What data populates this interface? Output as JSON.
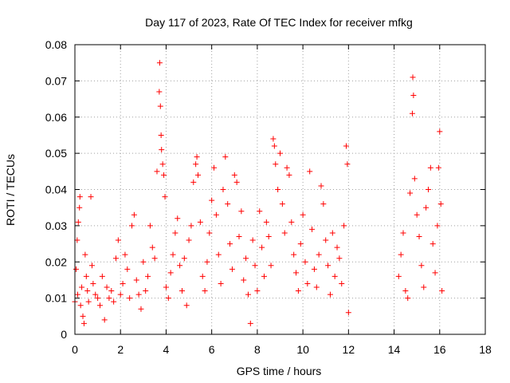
{
  "chart_data": {
    "type": "scatter",
    "title": "Day 117 of 2023, Rate Of TEC Index for receiver mfkg",
    "xlabel": "GPS time / hours",
    "ylabel": "ROTI / TECUs",
    "xlim": [
      0,
      18
    ],
    "ylim": [
      0,
      0.08
    ],
    "x_ticks": [
      "0",
      "2",
      "4",
      "6",
      "8",
      "10",
      "12",
      "14",
      "16",
      "18"
    ],
    "y_ticks": [
      "0",
      "0.01",
      "0.02",
      "0.03",
      "0.04",
      "0.05",
      "0.06",
      "0.07",
      "0.08"
    ],
    "grid": true,
    "marker": "plus",
    "marker_color": "#ff0000",
    "series": [
      {
        "name": "ROTI",
        "points": [
          [
            0.0,
            0.009
          ],
          [
            0.05,
            0.018
          ],
          [
            0.1,
            0.026
          ],
          [
            0.12,
            0.011
          ],
          [
            0.15,
            0.031
          ],
          [
            0.2,
            0.035
          ],
          [
            0.22,
            0.038
          ],
          [
            0.25,
            0.008
          ],
          [
            0.3,
            0.013
          ],
          [
            0.35,
            0.005
          ],
          [
            0.4,
            0.003
          ],
          [
            0.45,
            0.022
          ],
          [
            0.5,
            0.016
          ],
          [
            0.55,
            0.012
          ],
          [
            0.6,
            0.009
          ],
          [
            0.7,
            0.038
          ],
          [
            0.75,
            0.019
          ],
          [
            0.8,
            0.014
          ],
          [
            0.9,
            0.011
          ],
          [
            1.0,
            0.01
          ],
          [
            1.1,
            0.008
          ],
          [
            1.2,
            0.016
          ],
          [
            1.3,
            0.004
          ],
          [
            1.4,
            0.013
          ],
          [
            1.5,
            0.01
          ],
          [
            1.6,
            0.012
          ],
          [
            1.7,
            0.009
          ],
          [
            1.8,
            0.021
          ],
          [
            1.9,
            0.026
          ],
          [
            2.0,
            0.011
          ],
          [
            2.1,
            0.014
          ],
          [
            2.2,
            0.022
          ],
          [
            2.3,
            0.018
          ],
          [
            2.4,
            0.01
          ],
          [
            2.5,
            0.03
          ],
          [
            2.6,
            0.033
          ],
          [
            2.7,
            0.015
          ],
          [
            2.8,
            0.011
          ],
          [
            2.9,
            0.007
          ],
          [
            3.0,
            0.02
          ],
          [
            3.1,
            0.012
          ],
          [
            3.2,
            0.016
          ],
          [
            3.3,
            0.03
          ],
          [
            3.4,
            0.024
          ],
          [
            3.5,
            0.021
          ],
          [
            3.6,
            0.045
          ],
          [
            3.7,
            0.067
          ],
          [
            3.72,
            0.075
          ],
          [
            3.75,
            0.063
          ],
          [
            3.78,
            0.055
          ],
          [
            3.8,
            0.051
          ],
          [
            3.85,
            0.047
          ],
          [
            3.9,
            0.044
          ],
          [
            3.95,
            0.038
          ],
          [
            4.0,
            0.013
          ],
          [
            4.1,
            0.01
          ],
          [
            4.2,
            0.017
          ],
          [
            4.3,
            0.022
          ],
          [
            4.4,
            0.028
          ],
          [
            4.5,
            0.032
          ],
          [
            4.6,
            0.019
          ],
          [
            4.7,
            0.012
          ],
          [
            4.8,
            0.021
          ],
          [
            4.9,
            0.008
          ],
          [
            5.0,
            0.026
          ],
          [
            5.1,
            0.03
          ],
          [
            5.2,
            0.042
          ],
          [
            5.3,
            0.047
          ],
          [
            5.35,
            0.049
          ],
          [
            5.4,
            0.044
          ],
          [
            5.5,
            0.031
          ],
          [
            5.6,
            0.016
          ],
          [
            5.7,
            0.012
          ],
          [
            5.8,
            0.02
          ],
          [
            5.9,
            0.028
          ],
          [
            6.0,
            0.037
          ],
          [
            6.1,
            0.046
          ],
          [
            6.2,
            0.033
          ],
          [
            6.3,
            0.022
          ],
          [
            6.4,
            0.014
          ],
          [
            6.5,
            0.04
          ],
          [
            6.6,
            0.049
          ],
          [
            6.7,
            0.036
          ],
          [
            6.8,
            0.025
          ],
          [
            6.9,
            0.018
          ],
          [
            7.0,
            0.044
          ],
          [
            7.1,
            0.042
          ],
          [
            7.2,
            0.027
          ],
          [
            7.3,
            0.034
          ],
          [
            7.4,
            0.015
          ],
          [
            7.5,
            0.021
          ],
          [
            7.6,
            0.011
          ],
          [
            7.7,
            0.003
          ],
          [
            7.8,
            0.026
          ],
          [
            7.9,
            0.019
          ],
          [
            8.0,
            0.012
          ],
          [
            8.1,
            0.034
          ],
          [
            8.2,
            0.024
          ],
          [
            8.3,
            0.016
          ],
          [
            8.4,
            0.031
          ],
          [
            8.5,
            0.027
          ],
          [
            8.6,
            0.019
          ],
          [
            8.7,
            0.054
          ],
          [
            8.75,
            0.052
          ],
          [
            8.8,
            0.047
          ],
          [
            8.9,
            0.04
          ],
          [
            9.0,
            0.05
          ],
          [
            9.1,
            0.036
          ],
          [
            9.2,
            0.028
          ],
          [
            9.3,
            0.046
          ],
          [
            9.4,
            0.044
          ],
          [
            9.5,
            0.031
          ],
          [
            9.6,
            0.022
          ],
          [
            9.7,
            0.017
          ],
          [
            9.8,
            0.012
          ],
          [
            9.9,
            0.025
          ],
          [
            10.0,
            0.033
          ],
          [
            10.1,
            0.02
          ],
          [
            10.2,
            0.014
          ],
          [
            10.3,
            0.045
          ],
          [
            10.4,
            0.029
          ],
          [
            10.5,
            0.018
          ],
          [
            10.6,
            0.013
          ],
          [
            10.7,
            0.022
          ],
          [
            10.8,
            0.041
          ],
          [
            10.9,
            0.036
          ],
          [
            11.0,
            0.026
          ],
          [
            11.1,
            0.019
          ],
          [
            11.2,
            0.011
          ],
          [
            11.3,
            0.028
          ],
          [
            11.4,
            0.016
          ],
          [
            11.5,
            0.024
          ],
          [
            11.6,
            0.021
          ],
          [
            11.7,
            0.014
          ],
          [
            11.8,
            0.03
          ],
          [
            11.9,
            0.052
          ],
          [
            11.95,
            0.047
          ],
          [
            12.0,
            0.006
          ],
          [
            14.2,
            0.016
          ],
          [
            14.3,
            0.022
          ],
          [
            14.4,
            0.028
          ],
          [
            14.5,
            0.012
          ],
          [
            14.6,
            0.01
          ],
          [
            14.7,
            0.039
          ],
          [
            14.8,
            0.061
          ],
          [
            14.82,
            0.071
          ],
          [
            14.85,
            0.066
          ],
          [
            14.9,
            0.043
          ],
          [
            15.0,
            0.033
          ],
          [
            15.1,
            0.027
          ],
          [
            15.2,
            0.019
          ],
          [
            15.3,
            0.013
          ],
          [
            15.4,
            0.035
          ],
          [
            15.5,
            0.04
          ],
          [
            15.6,
            0.046
          ],
          [
            15.7,
            0.025
          ],
          [
            15.8,
            0.017
          ],
          [
            15.9,
            0.03
          ],
          [
            15.95,
            0.046
          ],
          [
            16.0,
            0.056
          ],
          [
            16.05,
            0.036
          ],
          [
            16.1,
            0.012
          ]
        ]
      }
    ]
  }
}
